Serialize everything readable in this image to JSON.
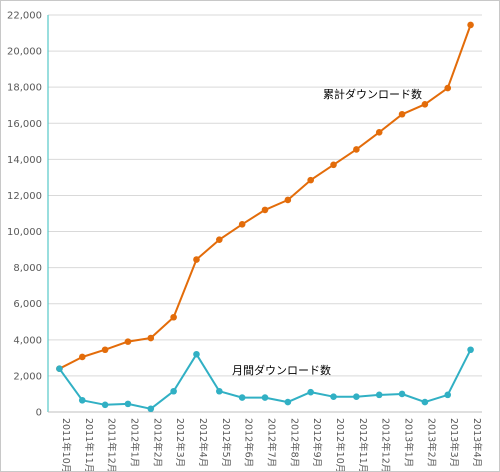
{
  "chart_data": {
    "type": "line",
    "title": "",
    "xlabel": "",
    "ylabel": "",
    "ylim": [
      0,
      22000
    ],
    "yticks": [
      "0",
      "2,000",
      "4,000",
      "6,000",
      "8,000",
      "10,000",
      "12,000",
      "14,000",
      "16,000",
      "18,000",
      "20,000",
      "22,000"
    ],
    "categories": [
      "2011年10月",
      "2011年11月",
      "2011年12月",
      "2012年1月",
      "2012年2月",
      "2012年3月",
      "2012年4月",
      "2012年5月",
      "2012年6月",
      "2012年7月",
      "2012年8月",
      "2012年9月",
      "2012年10月",
      "2012年11月",
      "2012年12月",
      "2013年1月",
      "2013年2月",
      "2013年3月",
      "2013年4月"
    ],
    "grid": true,
    "legend": "none",
    "series": [
      {
        "name": "累計ダウンロード数",
        "color": "#e36c0a",
        "values": [
          2400,
          3050,
          3450,
          3900,
          4100,
          5250,
          8450,
          9550,
          10400,
          11200,
          11750,
          12850,
          13700,
          14550,
          15500,
          16500,
          17050,
          17950,
          21450
        ]
      },
      {
        "name": "月間ダウンロード数",
        "color": "#31b0c4",
        "values": [
          2400,
          650,
          400,
          450,
          180,
          1150,
          3200,
          1150,
          800,
          800,
          550,
          1100,
          850,
          850,
          950,
          1000,
          550,
          950,
          3450
        ]
      }
    ],
    "annotations": [
      "累計ダウンロード数",
      "月間ダウンロード数"
    ]
  }
}
